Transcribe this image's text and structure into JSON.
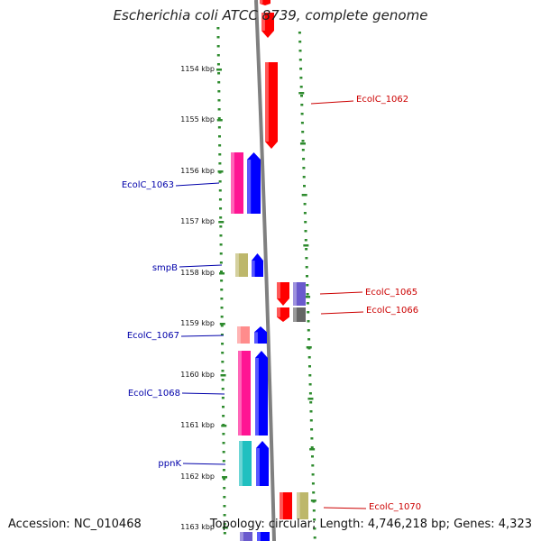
{
  "title": "Escherichia coli ATCC 8739, complete genome",
  "footer": {
    "accession": "Accession: NC_010468",
    "topology": "Topology: circular; Length: 4,746,218 bp; Genes: 4,323"
  },
  "colors": {
    "red": "#ff0000",
    "blue": "#0000ff",
    "magenta": "#ff1493",
    "pink": "#ff8c8c",
    "khaki": "#bdb76b",
    "teal": "#20c0c0",
    "slate": "#6a5acd",
    "gray": "#666666",
    "tick": "#2e8b2e",
    "backbone": "#808080",
    "label_left": "#0000aa",
    "label_right": "#cc0000"
  },
  "ticks": [
    {
      "label": "1154 kbp"
    },
    {
      "label": "1155 kbp"
    },
    {
      "label": "1156 kbp"
    },
    {
      "label": "1157 kbp"
    },
    {
      "label": "1158 kbp"
    },
    {
      "label": "1159 kbp"
    },
    {
      "label": "1160 kbp"
    },
    {
      "label": "1161 kbp"
    },
    {
      "label": "1162 kbp"
    },
    {
      "label": "1163 kbp"
    }
  ],
  "gene_labels": [
    {
      "text": "EcolC_1062",
      "side": "right"
    },
    {
      "text": "EcolC_1063",
      "side": "left"
    },
    {
      "text": "smpB",
      "side": "left"
    },
    {
      "text": "EcolC_1065",
      "side": "right"
    },
    {
      "text": "EcolC_1066",
      "side": "right"
    },
    {
      "text": "EcolC_1067",
      "side": "left"
    },
    {
      "text": "EcolC_1068",
      "side": "left"
    },
    {
      "text": "ppnK",
      "side": "left"
    },
    {
      "text": "EcolC_1070",
      "side": "right"
    }
  ]
}
